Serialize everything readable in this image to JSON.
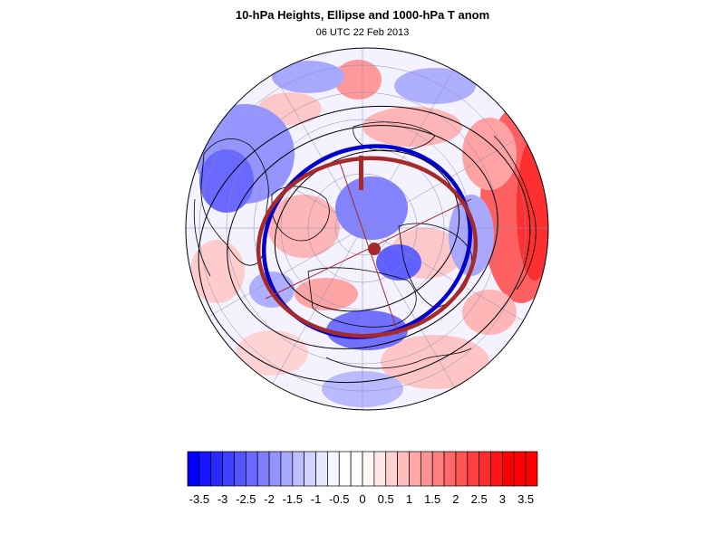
{
  "title": "10-hPa Heights, Ellipse and 1000-hPa T anom",
  "subtitle": "06 UTC 22 Feb 2013",
  "projection": "polar-stereographic",
  "hemisphere": "north",
  "colors": {
    "ellipse_fit": "#a52a2a",
    "height_contour_highlight": "#0000cc",
    "contours": "#000000",
    "coastlines": "#000000",
    "graticule": "#8c8cb4"
  },
  "colorbar": {
    "min": -3.75,
    "max": 3.75,
    "step": 0.25,
    "labels": [
      "-3.5",
      "-3",
      "-2.5",
      "-2",
      "-1.5",
      "-1",
      "-0.5",
      "0",
      "0.5",
      "1",
      "1.5",
      "2",
      "2.5",
      "3",
      "3.5"
    ],
    "label_values": [
      -3.5,
      -3,
      -2.5,
      -2,
      -1.5,
      -1,
      -0.5,
      0,
      0.5,
      1,
      1.5,
      2,
      2.5,
      3,
      3.5
    ],
    "colors": [
      "#0000ff",
      "#1515ff",
      "#2a2aff",
      "#3f3fff",
      "#5454ff",
      "#6969ff",
      "#7e7eff",
      "#9393ff",
      "#a8a8ff",
      "#bdbdff",
      "#d2d2ff",
      "#e7e7ff",
      "#f5f5ff",
      "#ffffff",
      "#ffffff",
      "#fff5f5",
      "#ffe7e7",
      "#ffd2d2",
      "#ffbdbd",
      "#ffa8a8",
      "#ff9393",
      "#ff7e7e",
      "#ff6969",
      "#ff5454",
      "#ff3f3f",
      "#ff2a2a",
      "#ff1515",
      "#ff0000",
      "#ff0000",
      "#ff0000"
    ]
  }
}
